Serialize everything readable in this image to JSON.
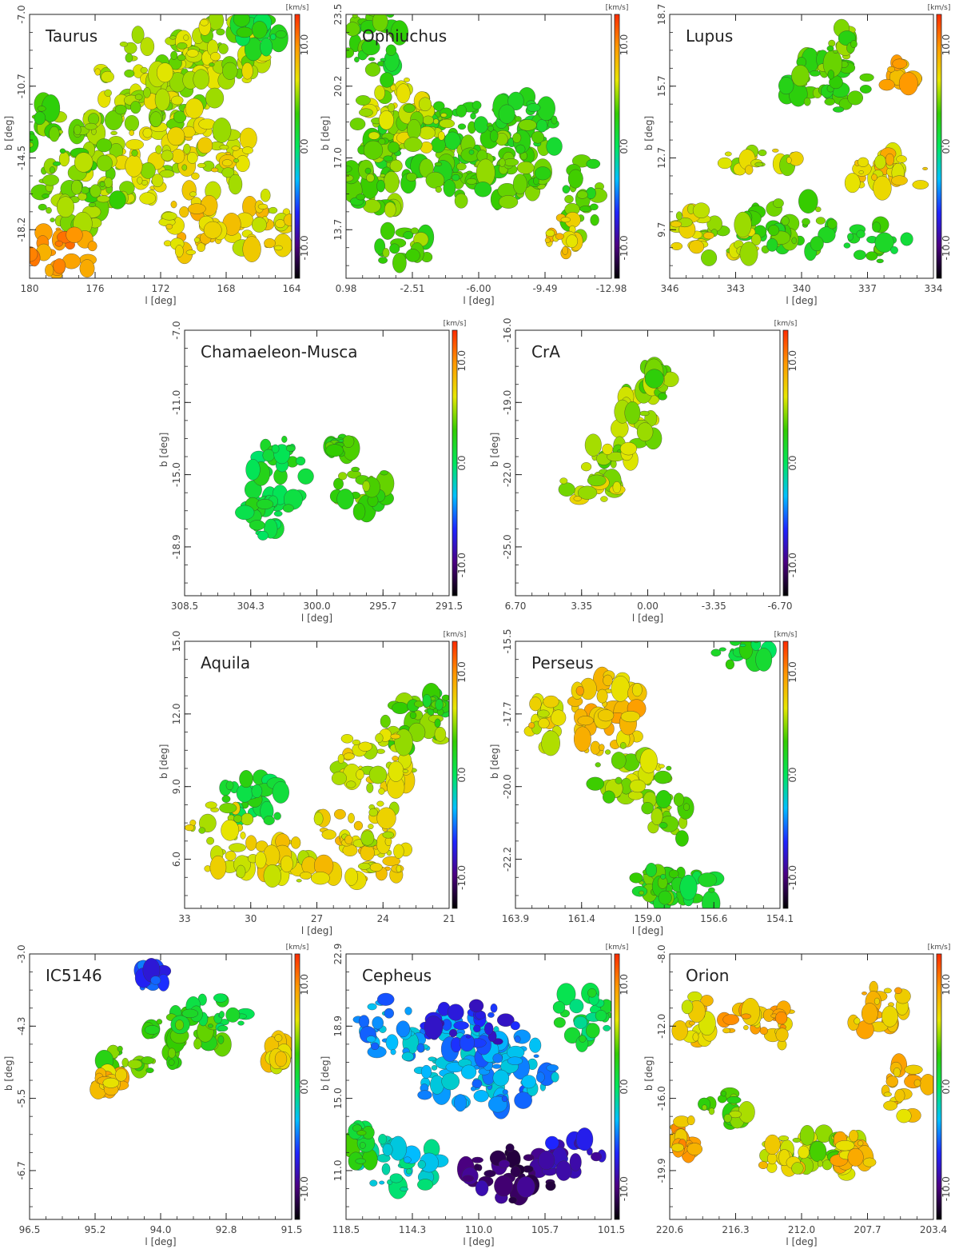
{
  "colorbar": {
    "unit": "[km/s]",
    "ticks": [
      "10.0",
      "0.0",
      "-10.0"
    ],
    "tick_values": [
      10,
      0,
      -10
    ],
    "range": [
      -13,
      13
    ],
    "stops": [
      "#000000",
      "#4b0082",
      "#1e24ff",
      "#00bfff",
      "#00e65c",
      "#33cc00",
      "#e6e600",
      "#ff9900",
      "#ff2a00"
    ]
  },
  "axis_labels": {
    "x": "l [deg]",
    "y": "b [deg]"
  },
  "panels": [
    {
      "id": "taurus",
      "title": "Taurus",
      "xticks": [
        "180",
        "176",
        "172",
        "168",
        "164"
      ],
      "yticks": [
        "-7.0",
        "-10.7",
        "-14.5",
        "-18.2"
      ]
    },
    {
      "id": "ophiuchus",
      "title": "Ophiuchus",
      "xticks": [
        "0.98",
        "-2.51",
        "-6.00",
        "-9.49",
        "-12.98"
      ],
      "yticks": [
        "23.5",
        "20.2",
        "17.0",
        "13.7"
      ]
    },
    {
      "id": "lupus",
      "title": "Lupus",
      "xticks": [
        "346",
        "343",
        "340",
        "337",
        "334"
      ],
      "yticks": [
        "18.7",
        "15.7",
        "12.7",
        "9.7"
      ]
    },
    {
      "id": "chamaeleon",
      "title": "Chamaeleon-Musca",
      "xticks": [
        "308.5",
        "304.3",
        "300.0",
        "295.7",
        "291.5"
      ],
      "yticks": [
        "-7.0",
        "-11.0",
        "-15.0",
        "-18.9"
      ]
    },
    {
      "id": "cra",
      "title": "CrA",
      "xticks": [
        "6.70",
        "3.35",
        "0.00",
        "-3.35",
        "-6.70"
      ],
      "yticks": [
        "-16.0",
        "-19.0",
        "-22.0",
        "-25.0"
      ]
    },
    {
      "id": "aquila",
      "title": "Aquila",
      "xticks": [
        "33",
        "30",
        "27",
        "24",
        "21"
      ],
      "yticks": [
        "15.0",
        "12.0",
        "9.0",
        "6.0"
      ]
    },
    {
      "id": "perseus",
      "title": "Perseus",
      "xticks": [
        "163.9",
        "161.4",
        "159.0",
        "156.6",
        "154.1"
      ],
      "yticks": [
        "-15.5",
        "-17.7",
        "-20.0",
        "-22.2"
      ]
    },
    {
      "id": "ic5146",
      "title": "IC5146",
      "xticks": [
        "96.5",
        "95.2",
        "94.0",
        "92.8",
        "91.5"
      ],
      "yticks": [
        "-3.0",
        "-4.3",
        "-5.5",
        "-6.7"
      ]
    },
    {
      "id": "cepheus",
      "title": "Cepheus",
      "xticks": [
        "118.5",
        "114.3",
        "110.0",
        "105.7",
        "101.5"
      ],
      "yticks": [
        "22.9",
        "18.9",
        "15.0",
        "11.0"
      ]
    },
    {
      "id": "orion",
      "title": "Orion",
      "xticks": [
        "220.6",
        "216.3",
        "212.0",
        "207.7",
        "203.4"
      ],
      "yticks": [
        "-8.0",
        "-12.0",
        "-16.0",
        "-19.9"
      ]
    }
  ],
  "chart_data": {
    "type": "heatmap",
    "quantity_unit": "km/s",
    "maps": [
      {
        "region": "Taurus",
        "xlim": [
          180,
          164
        ],
        "ylim": [
          -22,
          -7
        ],
        "blobs": [
          [
            174,
            -14.5,
            3.5,
            3.2,
            5.5
          ],
          [
            169,
            -15.2,
            3.0,
            2.0,
            6.5
          ],
          [
            177,
            -17,
            2.5,
            2.5,
            4.5
          ],
          [
            172,
            -10.5,
            4.0,
            2.5,
            5.5
          ],
          [
            168,
            -9,
            2.5,
            2.0,
            5.5
          ],
          [
            178,
            -20.5,
            2.0,
            1.5,
            10
          ],
          [
            166,
            -19,
            2.0,
            1.8,
            7
          ],
          [
            166,
            -8,
            1.8,
            1.0,
            1.5
          ],
          [
            170,
            -19,
            2.0,
            1.8,
            7.5
          ],
          [
            179,
            -14,
            1.2,
            2.0,
            4.0
          ]
        ]
      },
      {
        "region": "Ophiuchus",
        "xlim": [
          0.98,
          -12.98
        ],
        "ylim": [
          10.5,
          23.5
        ],
        "blobs": [
          [
            -4.5,
            17.2,
            4.5,
            2.0,
            3.5
          ],
          [
            -2.0,
            18.5,
            2.5,
            1.8,
            5.5
          ],
          [
            -6.5,
            15.5,
            3.0,
            1.5,
            3.5
          ],
          [
            -8.5,
            18,
            2.0,
            1.5,
            3.0
          ],
          [
            -1,
            15.5,
            2.0,
            1.8,
            4
          ],
          [
            -11.5,
            14.5,
            1.0,
            2.0,
            3.5
          ],
          [
            -10.5,
            12.5,
            1.0,
            1.0,
            7.5
          ],
          [
            -0.5,
            22,
            1.5,
            2.0,
            3.0
          ],
          [
            -2.0,
            12,
            1.5,
            1.0,
            4.0
          ]
        ]
      },
      {
        "region": "Lupus",
        "xlim": [
          346,
          334
        ],
        "ylim": [
          7.5,
          18.7
        ],
        "blobs": [
          [
            339,
            15.8,
            2.0,
            1.3,
            3.5
          ],
          [
            338,
            17,
            1.0,
            1.2,
            4.0
          ],
          [
            340.5,
            9.7,
            2.2,
            1.2,
            3.5
          ],
          [
            343.5,
            9,
            1.5,
            1.0,
            5.5
          ],
          [
            336.5,
            9.0,
            1.5,
            0.8,
            2.5
          ],
          [
            336,
            12,
            2.0,
            1.0,
            7.5
          ],
          [
            345,
            9.5,
            1.0,
            1.0,
            6.5
          ],
          [
            342,
            12.5,
            2.0,
            0.5,
            6.0
          ],
          [
            335.5,
            16,
            0.7,
            0.7,
            8.5
          ]
        ]
      },
      {
        "region": "Chamaeleon-Musca",
        "xlim": [
          308.5,
          291.5
        ],
        "ylim": [
          -22,
          -7
        ],
        "blobs": [
          [
            302.5,
            -15.2,
            1.8,
            2.2,
            1.2
          ],
          [
            303.5,
            -17.5,
            1.2,
            1.2,
            1.0
          ],
          [
            297,
            -16,
            1.8,
            1.5,
            3.8
          ],
          [
            298.5,
            -13.5,
            0.8,
            0.6,
            3.0
          ]
        ]
      },
      {
        "region": "CrA",
        "xlim": [
          6.7,
          -6.7
        ],
        "ylim": [
          -27,
          -16
        ],
        "blobs": [
          [
            0.5,
            -19.5,
            1.0,
            1.8,
            5.0
          ],
          [
            1.8,
            -21.5,
            1.5,
            1.0,
            5.0
          ],
          [
            3.0,
            -22.5,
            1.5,
            0.6,
            6.0
          ],
          [
            -0.5,
            -18,
            0.8,
            0.8,
            4.5
          ]
        ]
      },
      {
        "region": "Aquila",
        "xlim": [
          33,
          21
        ],
        "ylim": [
          4,
          15
        ],
        "blobs": [
          [
            27,
            6.0,
            5.5,
            0.9,
            7.0
          ],
          [
            22.5,
            11.5,
            1.5,
            1.2,
            4.0
          ],
          [
            24.5,
            10,
            2.0,
            1.3,
            6.5
          ],
          [
            29.8,
            8.5,
            1.5,
            1.2,
            1.5
          ],
          [
            31.5,
            7.5,
            1.5,
            0.8,
            6.0
          ],
          [
            25,
            7.5,
            2.0,
            1.0,
            6.5
          ],
          [
            21.5,
            12.5,
            0.6,
            0.5,
            3.0
          ]
        ]
      },
      {
        "region": "Perseus",
        "xlim": [
          163.9,
          154.1
        ],
        "ylim": [
          -23.8,
          -15.5
        ],
        "blobs": [
          [
            160.5,
            -17.8,
            1.5,
            1.3,
            8.0
          ],
          [
            159.5,
            -19.7,
            1.5,
            1.0,
            5.0
          ],
          [
            158.3,
            -21.0,
            1.0,
            0.8,
            4.0
          ],
          [
            157.5,
            -23.2,
            1.5,
            0.6,
            1.8
          ],
          [
            158.5,
            -23.0,
            1.0,
            0.6,
            3.0
          ],
          [
            162.8,
            -18.0,
            0.8,
            0.8,
            7.0
          ],
          [
            155.5,
            -15.8,
            1.0,
            0.5,
            1.5
          ]
        ]
      },
      {
        "region": "IC5146",
        "xlim": [
          96.5,
          91.5
        ],
        "ylim": [
          -7.8,
          -3.0
        ],
        "blobs": [
          [
            93.5,
            -4.5,
            0.8,
            0.5,
            3.0
          ],
          [
            94.6,
            -4.9,
            0.5,
            0.4,
            4.0
          ],
          [
            92.9,
            -4.1,
            0.6,
            0.35,
            1.0
          ],
          [
            94.2,
            -3.4,
            0.3,
            0.25,
            -6.0
          ],
          [
            91.8,
            -4.8,
            0.2,
            0.3,
            7.0
          ],
          [
            95.0,
            -5.3,
            0.3,
            0.2,
            8.0
          ]
        ]
      },
      {
        "region": "Cepheus",
        "xlim": [
          118.5,
          101.5
        ],
        "ylim": [
          8.5,
          22.9
        ],
        "blobs": [
          [
            111.5,
            17.2,
            3.5,
            2.5,
            -3.5
          ],
          [
            108,
            16.5,
            3.0,
            2.0,
            -4.0
          ],
          [
            103.5,
            19.5,
            2.0,
            1.5,
            0.5
          ],
          [
            110.5,
            19.0,
            3.0,
            1.2,
            -7.0
          ],
          [
            108,
            11.0,
            3.0,
            1.5,
            -10.0
          ],
          [
            115,
            11.5,
            3.0,
            1.5,
            -2.0
          ],
          [
            116,
            19,
            2.0,
            1.5,
            -4.0
          ],
          [
            104,
            12,
            2.0,
            1.0,
            -8.0
          ],
          [
            117.5,
            12.5,
            1.0,
            1.0,
            2.0
          ]
        ]
      },
      {
        "region": "Orion",
        "xlim": [
          220.6,
          203.4
        ],
        "ylim": [
          -22.5,
          -8.0
        ],
        "blobs": [
          [
            210.5,
            -19.0,
            3.0,
            1.2,
            5.0
          ],
          [
            213.5,
            -19.0,
            2.0,
            1.0,
            7.0
          ],
          [
            208.5,
            -18.8,
            1.5,
            1.0,
            8.0
          ],
          [
            205.5,
            -15.5,
            1.8,
            1.5,
            8.0
          ],
          [
            214.5,
            -12.0,
            3.0,
            1.2,
            8.5
          ],
          [
            219,
            -11.5,
            1.5,
            1.5,
            7.5
          ],
          [
            207,
            -11.0,
            2.0,
            1.5,
            8.0
          ],
          [
            217,
            -16.5,
            1.5,
            1.0,
            4.0
          ],
          [
            219.5,
            -18.0,
            0.8,
            1.0,
            9.0
          ]
        ]
      }
    ]
  }
}
